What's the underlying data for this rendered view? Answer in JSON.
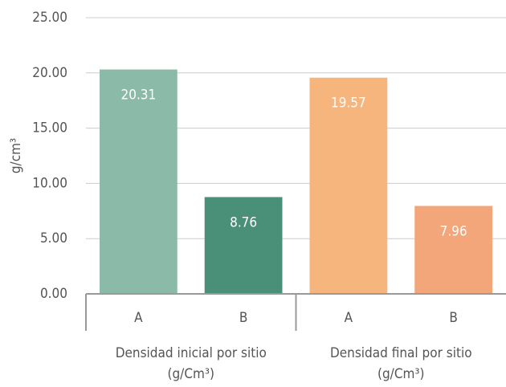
{
  "chart_data": {
    "type": "bar",
    "y_label": "g/cm³",
    "categories": [
      "A",
      "B",
      "A",
      "B"
    ],
    "values": [
      20.31,
      8.76,
      19.57,
      7.96
    ],
    "colors": [
      "#8bbaa8",
      "#4a8f78",
      "#f5b57c",
      "#f3a679"
    ],
    "groups": [
      {
        "lines": [
          "Densidad inicial por sitio",
          "(g/Cm³)"
        ]
      },
      {
        "lines": [
          "Densidad final por sitio",
          "(g/Cm³)"
        ]
      }
    ],
    "ylim": [
      0,
      25
    ],
    "yticks": [
      {
        "value": 0,
        "label": "0.00"
      },
      {
        "value": 5,
        "label": "5.00"
      },
      {
        "value": 10,
        "label": "10.00"
      },
      {
        "value": 15,
        "label": "15.00"
      },
      {
        "value": 20,
        "label": "20.00"
      },
      {
        "value": 25,
        "label": "25.00"
      }
    ],
    "grid": true
  }
}
